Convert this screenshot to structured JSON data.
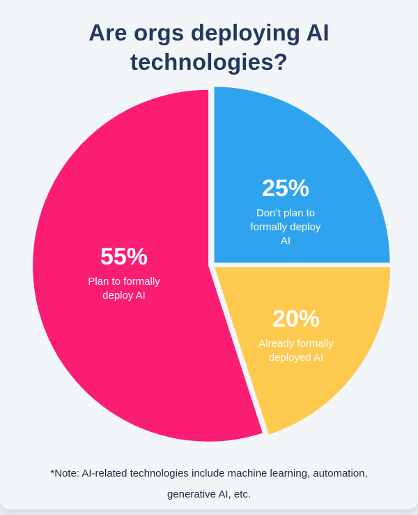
{
  "chart_data": {
    "type": "pie",
    "title": "Are orgs deploying AI technologies?",
    "title_lines": [
      "Are orgs deploying AI",
      "technologies?"
    ],
    "slices": [
      {
        "label": "Don't plan to formally deploy AI",
        "value": 25,
        "pct_label": "25%",
        "color": "#2fa3ee",
        "desc_lines": [
          "Don’t plan to",
          "formally deploy",
          "AI"
        ]
      },
      {
        "label": "Already formally deployed AI",
        "value": 20,
        "pct_label": "20%",
        "color": "#fdc94f",
        "desc_lines": [
          "Already formally",
          "deployed AI"
        ]
      },
      {
        "label": "Plan to formally deploy AI",
        "value": 55,
        "pct_label": "55%",
        "color": "#fb1d74",
        "desc_lines": [
          "Plan to formally",
          "deploy AI"
        ]
      }
    ],
    "start_angle_deg": 0,
    "direction": "clockwise",
    "legend": "none (inline labels)",
    "note": "*Note: AI-related technologies include machine learning, automation, generative AI, etc."
  },
  "note_lines": [
    "*Note: AI-related technologies include machine learning, automation,",
    "generative AI, etc."
  ]
}
